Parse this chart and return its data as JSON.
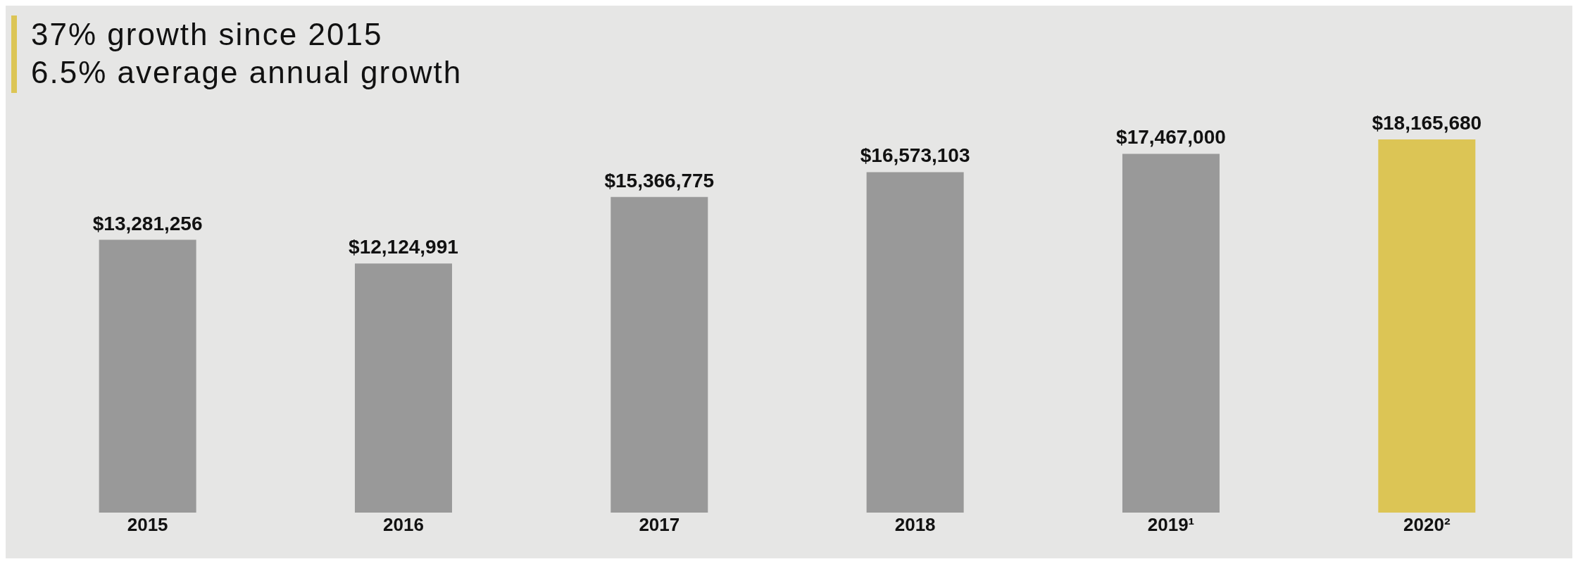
{
  "chart_data": {
    "type": "bar",
    "annotations": [
      "37% growth since 2015",
      "6.5% average annual growth"
    ],
    "categories": [
      "2015",
      "2016",
      "2017",
      "2018",
      "2019¹",
      "2020²"
    ],
    "values": [
      13281256,
      12124991,
      15366775,
      16573103,
      17467000,
      18165680
    ],
    "colors": [
      "#999999",
      "#999999",
      "#999999",
      "#999999",
      "#999999",
      "#dcc555"
    ],
    "value_labels": [
      "$13,281,256",
      "$12,124,991",
      "$15,366,775",
      "$16,573,103",
      "$17,467,000",
      "$18,165,680"
    ],
    "grid": false,
    "legend": false
  }
}
